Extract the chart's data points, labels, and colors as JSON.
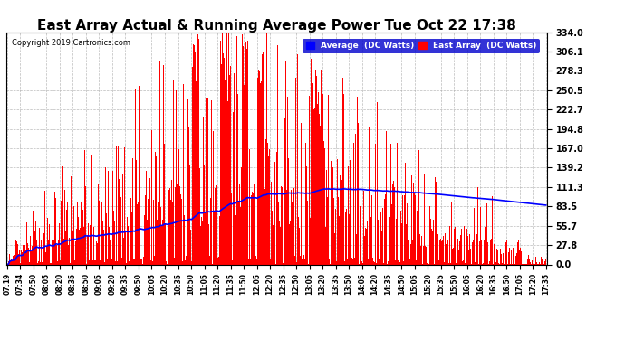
{
  "title": "East Array Actual & Running Average Power Tue Oct 22 17:38",
  "copyright": "Copyright 2019 Cartronics.com",
  "ylim": [
    0.0,
    334.0
  ],
  "yticks": [
    0.0,
    27.8,
    55.7,
    83.5,
    111.3,
    139.2,
    167.0,
    194.8,
    222.7,
    250.5,
    278.3,
    306.1,
    334.0
  ],
  "bar_color": "#FF0000",
  "avg_color": "#0000FF",
  "bg_color": "#FFFFFF",
  "grid_color": "#AAAAAA",
  "title_fontsize": 11,
  "legend_avg_label": "Average  (DC Watts)",
  "legend_east_label": "East Array  (DC Watts)",
  "xtick_labels": [
    "07:19",
    "07:34",
    "07:50",
    "08:05",
    "08:20",
    "08:35",
    "08:50",
    "09:05",
    "09:20",
    "09:35",
    "09:50",
    "10:05",
    "10:20",
    "10:35",
    "10:50",
    "11:05",
    "11:20",
    "11:35",
    "11:50",
    "12:05",
    "12:20",
    "12:35",
    "12:50",
    "13:05",
    "13:20",
    "13:35",
    "13:50",
    "14:05",
    "14:20",
    "14:35",
    "14:50",
    "15:05",
    "15:20",
    "15:35",
    "15:50",
    "16:05",
    "16:20",
    "16:35",
    "16:50",
    "17:05",
    "17:20",
    "17:35"
  ],
  "n_bars": 600
}
